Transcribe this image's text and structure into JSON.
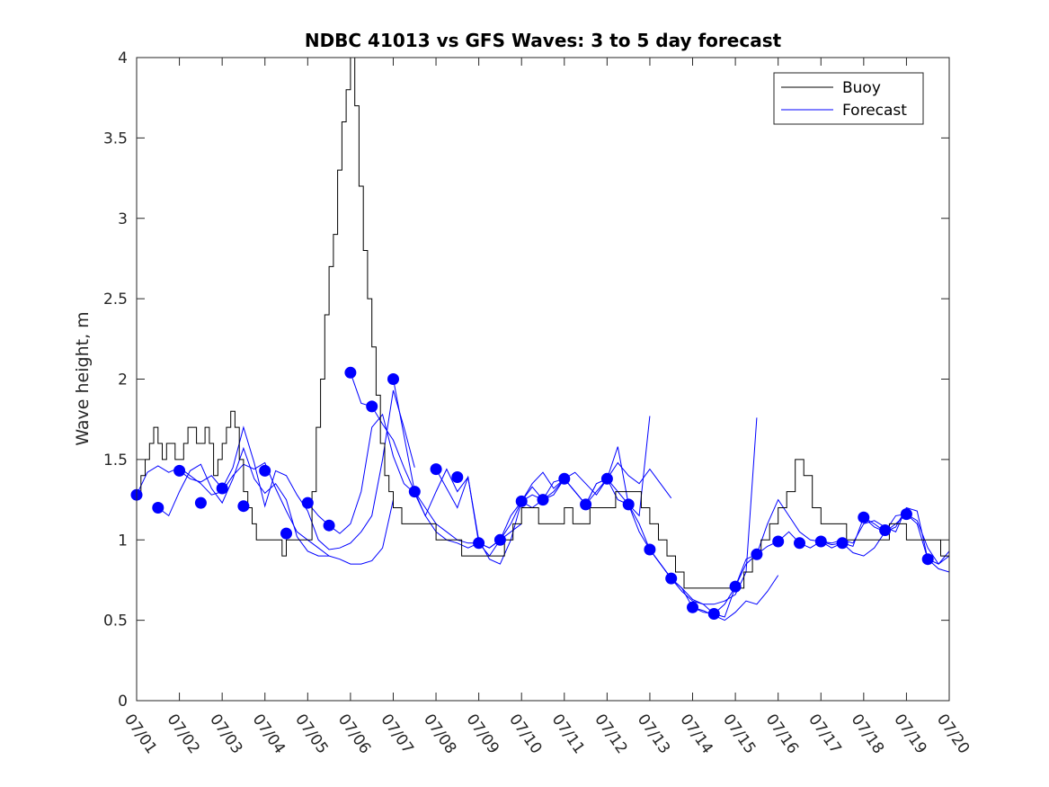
{
  "chart_data": {
    "type": "line",
    "title": "NDBC 41013 vs GFS Waves: 3 to 5 day forecast",
    "xlabel": "",
    "ylabel": "Wave height, m",
    "xlim": [
      1,
      20
    ],
    "ylim": [
      0,
      4
    ],
    "xtick_labels": [
      "07/01",
      "07/02",
      "07/03",
      "07/04",
      "07/05",
      "07/06",
      "07/07",
      "07/08",
      "07/09",
      "07/10",
      "07/11",
      "07/12",
      "07/13",
      "07/14",
      "07/15",
      "07/16",
      "07/17",
      "07/18",
      "07/19",
      "07/20"
    ],
    "yticks": [
      0,
      0.5,
      1,
      1.5,
      2,
      2.5,
      3,
      3.5,
      4
    ],
    "ytick_labels": [
      "0",
      "0.5",
      "1",
      "1.5",
      "2",
      "2.5",
      "3",
      "3.5",
      "4"
    ],
    "grid": false,
    "legend": {
      "position": "top-right",
      "entries": [
        "Buoy",
        "Forecast"
      ]
    },
    "colors": {
      "buoy": "#000000",
      "forecast": "#0000ff"
    },
    "series": [
      {
        "name": "Buoy",
        "color": "#000000",
        "x": [
          1.0,
          1.1,
          1.2,
          1.3,
          1.4,
          1.5,
          1.6,
          1.7,
          1.8,
          1.9,
          2.0,
          2.1,
          2.2,
          2.3,
          2.4,
          2.5,
          2.6,
          2.7,
          2.8,
          2.9,
          3.0,
          3.1,
          3.2,
          3.3,
          3.4,
          3.5,
          3.6,
          3.7,
          3.8,
          3.9,
          4.0,
          4.1,
          4.2,
          4.3,
          4.4,
          4.5,
          4.6,
          4.7,
          4.8,
          4.9,
          5.0,
          5.1,
          5.2,
          5.3,
          5.4,
          5.5,
          5.6,
          5.7,
          5.8,
          5.9,
          6.0,
          6.1,
          6.2,
          6.3,
          6.4,
          6.5,
          6.6,
          6.7,
          6.8,
          6.9,
          7.0,
          7.1,
          7.2,
          7.3,
          7.4,
          7.5,
          7.6,
          7.7,
          7.8,
          7.9,
          8.0,
          8.2,
          8.4,
          8.6,
          8.8,
          9.0,
          9.2,
          9.4,
          9.6,
          9.8,
          10.0,
          10.2,
          10.4,
          10.6,
          10.8,
          11.0,
          11.2,
          11.4,
          11.6,
          11.8,
          12.0,
          12.2,
          12.4,
          12.6,
          12.8,
          13.0,
          13.2,
          13.4,
          13.6,
          13.8,
          14.0,
          14.2,
          14.4,
          14.6,
          14.8,
          15.0,
          15.2,
          15.4,
          15.6,
          15.8,
          16.0,
          16.2,
          16.4,
          16.6,
          16.8,
          17.0,
          17.2,
          17.4,
          17.6,
          17.8,
          18.0,
          18.2,
          18.4,
          18.6,
          18.8,
          19.0,
          19.2,
          19.4,
          19.6,
          19.8,
          20.0
        ],
        "y": [
          1.3,
          1.4,
          1.5,
          1.6,
          1.7,
          1.6,
          1.5,
          1.6,
          1.6,
          1.5,
          1.5,
          1.6,
          1.7,
          1.7,
          1.6,
          1.6,
          1.7,
          1.6,
          1.4,
          1.5,
          1.6,
          1.7,
          1.8,
          1.7,
          1.5,
          1.3,
          1.2,
          1.1,
          1.0,
          1.0,
          1.0,
          1.0,
          1.0,
          1.0,
          0.9,
          1.0,
          1.0,
          1.0,
          1.0,
          1.0,
          1.0,
          1.3,
          1.7,
          2.0,
          2.4,
          2.7,
          2.9,
          3.3,
          3.6,
          3.8,
          4.0,
          3.7,
          3.2,
          2.8,
          2.5,
          2.2,
          1.9,
          1.6,
          1.4,
          1.3,
          1.2,
          1.2,
          1.1,
          1.1,
          1.1,
          1.1,
          1.1,
          1.1,
          1.1,
          1.1,
          1.0,
          1.0,
          1.0,
          0.9,
          0.9,
          0.9,
          0.9,
          0.9,
          1.0,
          1.1,
          1.2,
          1.2,
          1.1,
          1.1,
          1.1,
          1.2,
          1.1,
          1.1,
          1.2,
          1.2,
          1.2,
          1.3,
          1.3,
          1.3,
          1.2,
          1.1,
          1.0,
          0.9,
          0.8,
          0.7,
          0.7,
          0.7,
          0.7,
          0.7,
          0.7,
          0.7,
          0.8,
          0.9,
          1.0,
          1.1,
          1.2,
          1.3,
          1.5,
          1.4,
          1.2,
          1.1,
          1.1,
          1.1,
          1.0,
          1.0,
          1.0,
          1.0,
          1.0,
          1.1,
          1.1,
          1.0,
          1.0,
          1.0,
          1.0,
          0.9,
          0.9
        ]
      },
      {
        "name": "Forecast",
        "color": "#0000ff",
        "runs": [
          {
            "x": [
              1.0,
              1.25,
              1.5,
              1.75,
              2.0,
              2.25,
              2.5,
              2.75,
              3.0,
              3.25,
              3.5,
              3.75,
              4.0,
              4.25,
              4.5,
              4.75,
              5.0,
              5.25,
              5.5
            ],
            "y": [
              1.28,
              1.42,
              1.46,
              1.42,
              1.45,
              1.4,
              1.35,
              1.28,
              1.3,
              1.4,
              1.47,
              1.44,
              1.48,
              1.32,
              1.18,
              1.05,
              1.0,
              0.95,
              0.9
            ]
          },
          {
            "x": [
              1.5,
              1.75,
              2.0,
              2.25,
              2.5,
              2.75,
              3.0,
              3.25,
              3.5,
              3.75,
              4.0,
              4.25,
              4.5,
              4.75,
              5.0,
              5.25,
              5.5,
              5.75,
              6.0,
              6.25,
              6.5,
              6.75,
              7.0
            ],
            "y": [
              1.2,
              1.15,
              1.3,
              1.43,
              1.47,
              1.32,
              1.23,
              1.38,
              1.57,
              1.38,
              1.29,
              1.35,
              1.25,
              1.02,
              0.93,
              0.9,
              0.9,
              0.88,
              0.85,
              0.85,
              0.87,
              0.95,
              1.25
            ]
          },
          {
            "x": [
              2.0,
              2.25,
              2.5,
              2.75,
              3.0,
              3.25,
              3.5,
              3.75,
              4.0,
              4.25,
              4.5,
              4.75,
              5.0,
              5.25,
              5.5,
              5.75,
              6.0,
              6.25,
              6.5,
              6.75,
              7.0,
              7.25,
              7.5
            ],
            "y": [
              1.43,
              1.38,
              1.36,
              1.4,
              1.32,
              1.45,
              1.7,
              1.48,
              1.21,
              1.43,
              1.4,
              1.28,
              1.18,
              1.0,
              0.94,
              0.95,
              0.98,
              1.05,
              1.15,
              1.5,
              1.93,
              1.7,
              1.45
            ]
          },
          {
            "x": [
              5.0,
              5.25,
              5.5,
              5.75,
              6.0,
              6.25,
              6.5,
              6.75,
              7.0,
              7.25,
              7.5,
              7.75,
              8.0,
              8.25,
              8.5,
              8.75,
              9.0
            ],
            "y": [
              1.23,
              1.15,
              1.09,
              1.04,
              1.1,
              1.3,
              1.7,
              1.78,
              1.52,
              1.35,
              1.29,
              1.15,
              1.05,
              1.0,
              0.98,
              0.95,
              0.98
            ]
          },
          {
            "x": [
              6.0,
              6.25,
              6.5,
              6.75,
              7.0,
              7.25,
              7.5,
              7.75,
              8.0,
              8.25,
              8.5,
              8.75,
              9.0,
              9.25,
              9.5,
              9.75,
              10.0
            ],
            "y": [
              2.04,
              1.85,
              1.83,
              1.72,
              1.62,
              1.45,
              1.3,
              1.2,
              1.1,
              1.05,
              1.0,
              0.98,
              0.98,
              0.95,
              1.0,
              1.05,
              1.1
            ]
          },
          {
            "x": [
              7.0,
              7.25,
              7.5,
              7.75,
              8.0,
              8.25,
              8.5,
              8.75,
              9.0,
              9.25,
              9.5,
              9.75,
              10.0,
              10.25,
              10.5,
              10.75,
              11.0
            ],
            "y": [
              2.0,
              1.65,
              1.3,
              1.15,
              1.3,
              1.44,
              1.3,
              1.39,
              0.98,
              0.9,
              1.0,
              1.15,
              1.24,
              1.28,
              1.25,
              1.3,
              1.38
            ]
          },
          {
            "x": [
              8.0,
              8.25,
              8.5,
              8.75,
              9.0,
              9.25,
              9.5,
              9.75,
              10.0,
              10.25,
              10.5,
              10.75,
              11.0,
              11.25,
              11.5,
              11.75,
              12.0
            ],
            "y": [
              1.44,
              1.32,
              1.2,
              1.39,
              1.0,
              0.88,
              0.85,
              1.0,
              1.24,
              1.35,
              1.42,
              1.32,
              1.38,
              1.42,
              1.35,
              1.28,
              1.38
            ]
          },
          {
            "x": [
              9.0,
              9.25,
              9.5,
              9.75,
              10.0,
              10.25,
              10.5,
              10.75,
              11.0,
              11.25,
              11.5,
              11.75,
              12.0,
              12.25,
              12.5,
              12.75,
              13.0
            ],
            "y": [
              0.98,
              0.95,
              1.0,
              1.1,
              1.24,
              1.33,
              1.25,
              1.28,
              1.38,
              1.3,
              1.22,
              1.35,
              1.38,
              1.58,
              1.22,
              1.15,
              1.77
            ]
          },
          {
            "x": [
              10.0,
              10.25,
              10.5,
              10.75,
              11.0,
              11.25,
              11.5,
              11.75,
              12.0,
              12.25,
              12.5,
              12.75,
              13.0,
              13.25,
              13.5
            ],
            "y": [
              1.24,
              1.2,
              1.25,
              1.36,
              1.38,
              1.3,
              1.22,
              1.35,
              1.38,
              1.48,
              1.4,
              1.35,
              1.44,
              1.35,
              1.26
            ]
          },
          {
            "x": [
              11.0,
              11.25,
              11.5,
              11.75,
              12.0,
              12.25,
              12.5,
              12.75,
              13.0,
              13.25,
              13.5,
              13.75,
              14.0,
              14.25,
              14.5,
              14.75,
              15.0
            ],
            "y": [
              1.38,
              1.3,
              1.22,
              1.3,
              1.38,
              1.3,
              1.22,
              1.1,
              0.94,
              0.85,
              0.76,
              0.7,
              0.58,
              0.55,
              0.54,
              0.6,
              0.71
            ]
          },
          {
            "x": [
              12.0,
              12.25,
              12.5,
              12.75,
              13.0,
              13.25,
              13.5,
              13.75,
              14.0,
              14.25,
              14.5,
              14.75,
              15.0,
              15.25,
              15.5,
              15.75,
              16.0
            ],
            "y": [
              1.38,
              1.25,
              1.22,
              1.05,
              0.94,
              0.85,
              0.76,
              0.7,
              0.63,
              0.6,
              0.54,
              0.52,
              0.71,
              0.88,
              0.91,
              0.96,
              0.99
            ]
          },
          {
            "x": [
              13.0,
              13.25,
              13.5,
              13.75,
              14.0,
              14.25,
              14.5,
              14.75,
              15.0,
              15.25,
              15.5
            ],
            "y": [
              0.94,
              0.85,
              0.76,
              0.68,
              0.62,
              0.6,
              0.6,
              0.62,
              0.66,
              0.8,
              1.76
            ]
          },
          {
            "x": [
              14.0,
              14.25,
              14.5,
              14.75,
              15.0,
              15.25,
              15.5,
              15.75,
              16.0
            ],
            "y": [
              0.58,
              0.56,
              0.53,
              0.5,
              0.55,
              0.62,
              0.6,
              0.68,
              0.78
            ]
          },
          {
            "x": [
              15.0,
              15.25,
              15.5,
              15.75,
              16.0,
              16.25,
              16.5,
              16.75,
              17.0,
              17.25,
              17.5,
              17.75,
              18.0,
              18.25,
              18.5,
              18.75,
              19.0
            ],
            "y": [
              0.71,
              0.85,
              0.91,
              1.1,
              1.25,
              1.15,
              1.05,
              1.0,
              0.99,
              0.98,
              1.0,
              0.98,
              1.1,
              1.12,
              1.08,
              1.05,
              1.2
            ]
          },
          {
            "x": [
              16.0,
              16.25,
              16.5,
              16.75,
              17.0,
              17.25,
              17.5,
              17.75,
              18.0,
              18.25,
              18.5,
              18.75,
              19.0,
              19.25,
              19.5,
              19.75,
              20.0
            ],
            "y": [
              0.99,
              1.05,
              0.98,
              0.95,
              0.99,
              0.95,
              0.98,
              0.92,
              0.9,
              0.95,
              1.05,
              1.15,
              1.16,
              1.1,
              0.88,
              0.82,
              0.8
            ]
          },
          {
            "x": [
              17.0,
              17.25,
              17.5,
              17.75,
              18.0,
              18.25,
              18.5,
              18.75,
              19.0,
              19.25,
              19.5,
              19.75,
              20.0
            ],
            "y": [
              0.99,
              0.97,
              0.98,
              0.96,
              1.14,
              1.08,
              1.05,
              1.1,
              1.16,
              1.12,
              0.95,
              0.85,
              0.9
            ]
          },
          {
            "x": [
              18.0,
              18.25,
              18.5,
              18.75,
              19.0,
              19.25,
              19.5,
              19.75,
              20.0
            ],
            "y": [
              1.14,
              1.1,
              1.05,
              1.08,
              1.2,
              1.18,
              0.88,
              0.85,
              0.93
            ]
          }
        ],
        "points": {
          "x": [
            1.0,
            1.5,
            2.0,
            2.5,
            3.0,
            3.5,
            4.0,
            4.5,
            5.0,
            5.5,
            6.0,
            6.5,
            7.0,
            7.5,
            8.0,
            8.5,
            9.0,
            9.5,
            10.0,
            10.5,
            11.0,
            11.5,
            12.0,
            12.5,
            13.0,
            13.5,
            14.0,
            14.5,
            15.0,
            15.5,
            16.0,
            16.5,
            17.0,
            17.5,
            18.0,
            18.5,
            19.0,
            19.5
          ],
          "y": [
            1.28,
            1.2,
            1.43,
            1.23,
            1.32,
            1.21,
            1.43,
            1.04,
            1.23,
            1.09,
            2.04,
            1.83,
            2.0,
            1.3,
            1.44,
            1.39,
            0.98,
            1.0,
            1.24,
            1.25,
            1.38,
            1.22,
            1.38,
            1.22,
            0.94,
            0.76,
            0.58,
            0.54,
            0.71,
            0.91,
            0.99,
            0.98,
            0.99,
            0.98,
            1.14,
            1.06,
            1.16,
            0.88
          ]
        }
      }
    ]
  }
}
